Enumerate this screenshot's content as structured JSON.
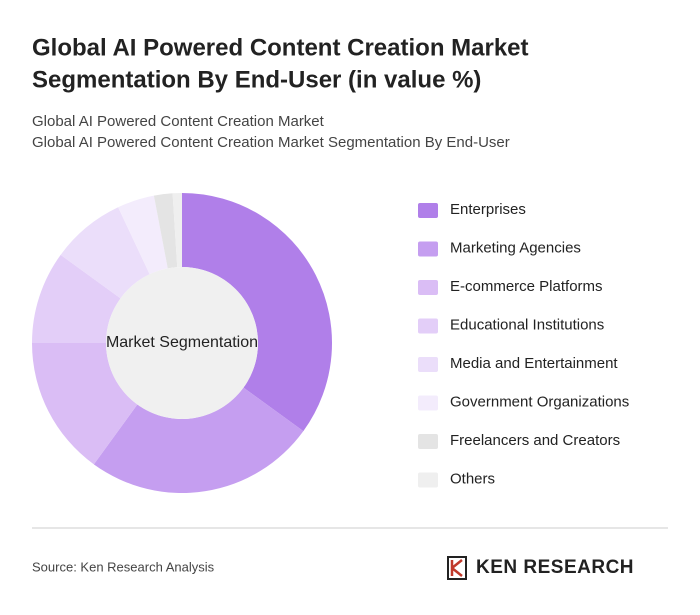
{
  "chart_data": {
    "type": "pie",
    "title": [
      "Global AI Powered Content Creation Market",
      "Segmentation By End-User (in value %)"
    ],
    "subtitle": [
      "Global AI Powered Content Creation Market",
      "Global AI Powered Content Creation Market Segmentation By End-User"
    ],
    "center_label": "Market Segmentation",
    "categories": [
      "Enterprises",
      "Marketing Agencies",
      "E-commerce Platforms",
      "Educational Institutions",
      "Media and Entertainment",
      "Government Organizations",
      "Freelancers and Creators",
      "Others"
    ],
    "values": [
      35,
      25,
      15,
      10,
      8,
      4,
      2,
      1
    ],
    "colors": [
      "#b07fe9",
      "#c59ef0",
      "#dabdf5",
      "#e3cef8",
      "#ebdefa",
      "#f3ecfc",
      "#e4e4e4",
      "#efefef"
    ],
    "legend": "right"
  },
  "footer": {
    "source": "Source: Ken Research Analysis",
    "logo": "KEN RESEARCH"
  }
}
